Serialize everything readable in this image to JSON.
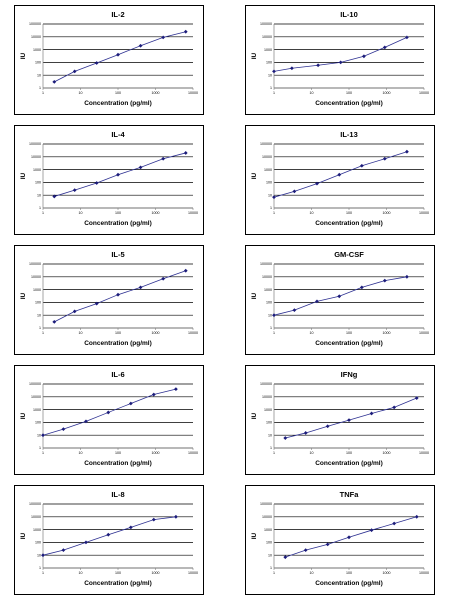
{
  "chart_data": [
    {
      "type": "line",
      "title": "IL-2",
      "xlabel": "Concentration (pg/ml)",
      "ylabel": "IU",
      "xscale": "log",
      "yscale": "log",
      "xlim": [
        1,
        10000
      ],
      "ylim": [
        1,
        100000
      ],
      "x_ticks": [
        "1",
        "10",
        "100",
        "1000",
        "10000"
      ],
      "y_ticks": [
        "1",
        "10",
        "100",
        "1000",
        "10000",
        "100000"
      ],
      "series": [
        {
          "x": [
            2,
            7,
            27,
            100,
            400,
            1600,
            6400
          ],
          "y": [
            3,
            20,
            90,
            400,
            2000,
            9000,
            25000
          ]
        }
      ]
    },
    {
      "type": "line",
      "title": "IL-10",
      "xlabel": "Concentration (pg/ml)",
      "ylabel": "IU",
      "xscale": "log",
      "yscale": "log",
      "xlim": [
        1,
        10000
      ],
      "ylim": [
        1,
        100000
      ],
      "x_ticks": [
        "1",
        "10",
        "100",
        "1000",
        "10000"
      ],
      "y_ticks": [
        "1",
        "10",
        "100",
        "1000",
        "10000",
        "100000"
      ],
      "series": [
        {
          "x": [
            1,
            3,
            15,
            60,
            250,
            900,
            3500
          ],
          "y": [
            20,
            35,
            60,
            100,
            300,
            1500,
            9000
          ]
        }
      ]
    },
    {
      "type": "line",
      "title": "IL-4",
      "xlabel": "Concentration (pg/ml)",
      "ylabel": "IU",
      "xscale": "log",
      "yscale": "log",
      "xlim": [
        1,
        10000
      ],
      "ylim": [
        1,
        100000
      ],
      "x_ticks": [
        "1",
        "10",
        "100",
        "1000",
        "10000"
      ],
      "y_ticks": [
        "1",
        "10",
        "100",
        "1000",
        "10000",
        "100000"
      ],
      "series": [
        {
          "x": [
            2,
            7,
            27,
            100,
            400,
            1600,
            6400
          ],
          "y": [
            8,
            25,
            90,
            400,
            1500,
            7000,
            20000
          ]
        }
      ]
    },
    {
      "type": "line",
      "title": "IL-13",
      "xlabel": "Concentration (pg/ml)",
      "ylabel": "IU",
      "xscale": "log",
      "yscale": "log",
      "xlim": [
        1,
        10000
      ],
      "ylim": [
        1,
        100000
      ],
      "x_ticks": [
        "1",
        "10",
        "100",
        "1000",
        "10000"
      ],
      "y_ticks": [
        "1",
        "10",
        "100",
        "1000",
        "10000",
        "100000"
      ],
      "series": [
        {
          "x": [
            1,
            3.5,
            14,
            55,
            220,
            900,
            3500
          ],
          "y": [
            7,
            20,
            80,
            400,
            2000,
            7000,
            25000
          ]
        }
      ]
    },
    {
      "type": "line",
      "title": "IL-5",
      "xlabel": "Concentration (pg/ml)",
      "ylabel": "IU",
      "xscale": "log",
      "yscale": "log",
      "xlim": [
        1,
        10000
      ],
      "ylim": [
        1,
        100000
      ],
      "x_ticks": [
        "1",
        "10",
        "100",
        "1000",
        "10000"
      ],
      "y_ticks": [
        "1",
        "10",
        "100",
        "1000",
        "10000",
        "100000"
      ],
      "series": [
        {
          "x": [
            2,
            7,
            27,
            100,
            400,
            1600,
            6400
          ],
          "y": [
            3,
            20,
            80,
            400,
            1500,
            7000,
            30000
          ]
        }
      ]
    },
    {
      "type": "line",
      "title": "GM-CSF",
      "xlabel": "Concentration (pg/ml)",
      "ylabel": "IU",
      "xscale": "log",
      "yscale": "log",
      "xlim": [
        1,
        10000
      ],
      "ylim": [
        1,
        100000
      ],
      "x_ticks": [
        "1",
        "10",
        "100",
        "1000",
        "10000"
      ],
      "y_ticks": [
        "1",
        "10",
        "100",
        "1000",
        "10000",
        "100000"
      ],
      "series": [
        {
          "x": [
            1,
            3.5,
            14,
            55,
            220,
            900,
            3500
          ],
          "y": [
            10,
            25,
            120,
            300,
            1500,
            5000,
            10000
          ]
        }
      ]
    },
    {
      "type": "line",
      "title": "IL-6",
      "xlabel": "Concentration (pg/ml)",
      "ylabel": "IU",
      "xscale": "log",
      "yscale": "log",
      "xlim": [
        1,
        10000
      ],
      "ylim": [
        1,
        100000
      ],
      "x_ticks": [
        "1",
        "10",
        "100",
        "1000",
        "10000"
      ],
      "y_ticks": [
        "1",
        "10",
        "100",
        "1000",
        "10000",
        "100000"
      ],
      "series": [
        {
          "x": [
            1,
            3.5,
            14,
            55,
            220,
            900,
            3500
          ],
          "y": [
            10,
            30,
            120,
            600,
            3000,
            15000,
            40000
          ]
        }
      ]
    },
    {
      "type": "line",
      "title": "IFNg",
      "xlabel": "Concentration (pg/ml)",
      "ylabel": "IU",
      "xscale": "log",
      "yscale": "log",
      "xlim": [
        1,
        10000
      ],
      "ylim": [
        1,
        100000
      ],
      "x_ticks": [
        "1",
        "10",
        "100",
        "1000",
        "10000"
      ],
      "y_ticks": [
        "1",
        "10",
        "100",
        "1000",
        "10000",
        "100000"
      ],
      "series": [
        {
          "x": [
            2,
            7,
            27,
            100,
            400,
            1600,
            6400
          ],
          "y": [
            6,
            15,
            50,
            150,
            500,
            1500,
            8000
          ]
        }
      ]
    },
    {
      "type": "line",
      "title": "IL-8",
      "xlabel": "Concentration (pg/ml)",
      "ylabel": "IU",
      "xscale": "log",
      "yscale": "log",
      "xlim": [
        1,
        10000
      ],
      "ylim": [
        1,
        100000
      ],
      "x_ticks": [
        "1",
        "10",
        "100",
        "1000",
        "10000"
      ],
      "y_ticks": [
        "1",
        "10",
        "100",
        "1000",
        "10000",
        "100000"
      ],
      "series": [
        {
          "x": [
            1,
            3.5,
            14,
            55,
            220,
            900,
            3500
          ],
          "y": [
            10,
            25,
            100,
            400,
            1500,
            6000,
            10000
          ]
        }
      ]
    },
    {
      "type": "line",
      "title": "TNFa",
      "xlabel": "Concentration (pg/ml)",
      "ylabel": "IU",
      "xscale": "log",
      "yscale": "log",
      "xlim": [
        1,
        10000
      ],
      "ylim": [
        1,
        100000
      ],
      "x_ticks": [
        "1",
        "10",
        "100",
        "1000",
        "10000"
      ],
      "y_ticks": [
        "1",
        "10",
        "100",
        "1000",
        "10000",
        "100000"
      ],
      "series": [
        {
          "x": [
            2,
            7,
            27,
            100,
            400,
            1600,
            6400
          ],
          "y": [
            7,
            25,
            70,
            250,
            900,
            3000,
            10000
          ]
        }
      ]
    }
  ],
  "style": {
    "line_color": "#2e3192",
    "marker_color": "#1c1c7a",
    "grid_color": "#000000",
    "axis_color": "#808080"
  }
}
